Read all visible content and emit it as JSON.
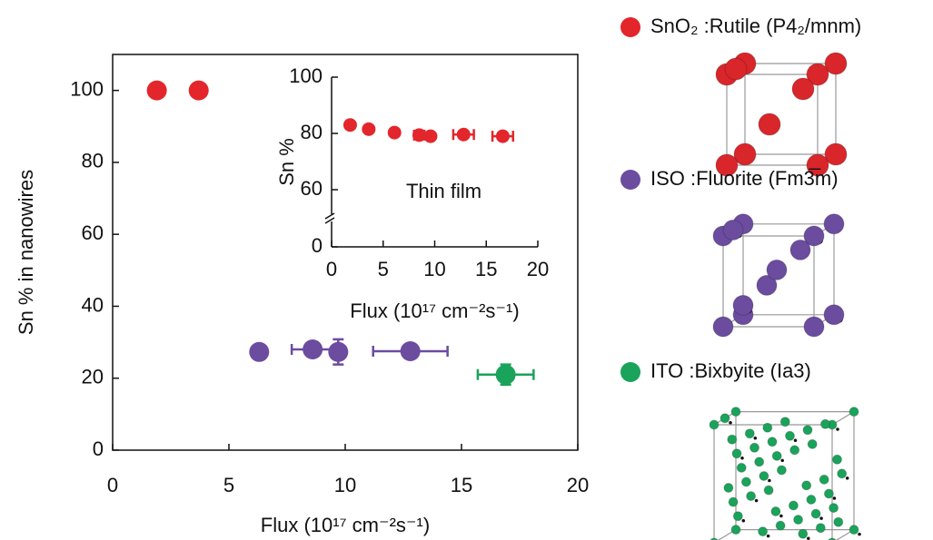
{
  "chart_data": [
    {
      "type": "scatter",
      "x_label": "Flux (10¹⁷ cm⁻²s⁻¹)",
      "y_label": "Sn % in nanowires",
      "xlim": [
        0,
        20
      ],
      "ylim": [
        0,
        110
      ],
      "xticks": [
        0,
        5,
        10,
        15,
        20
      ],
      "yticks": [
        0,
        20,
        40,
        60,
        80,
        100
      ],
      "series": [
        {
          "name": "SnO₂ :Rutile (P4₂/mnm)",
          "color": "#e3262b",
          "x": [
            1.9,
            3.7
          ],
          "values": [
            100,
            100
          ],
          "xerr": [
            null,
            null
          ],
          "yerr": [
            null,
            null
          ]
        },
        {
          "name": "ISO :Fluorite (Fm3̅m)",
          "color": "#6b4c9f",
          "x": [
            6.3,
            8.6,
            9.7,
            12.8
          ],
          "values": [
            27.3,
            28,
            27.3,
            27.5
          ],
          "xerr": [
            0.3,
            0.9,
            null,
            1.6
          ],
          "yerr": [
            null,
            null,
            3.5,
            1.8
          ]
        },
        {
          "name": "ITO :Bixbyite (Ia3)",
          "color": "#1aa35a",
          "x": [
            16.9
          ],
          "values": [
            21
          ],
          "xerr": [
            1.2
          ],
          "yerr": [
            2.8
          ]
        }
      ]
    },
    {
      "type": "scatter",
      "x_label": "Flux (10¹⁷ cm⁻²s⁻¹)",
      "y_label": "Sn %",
      "annotation": "Thin film",
      "xlim": [
        0,
        20
      ],
      "ylim": [
        0,
        100
      ],
      "axis_break": true,
      "xticks": [
        0,
        5,
        10,
        15,
        20
      ],
      "yticks": [
        0,
        60,
        80,
        100
      ],
      "series": [
        {
          "color": "#e3262b",
          "x": [
            1.8,
            3.6,
            6.1,
            8.5,
            9.6,
            12.8,
            16.6
          ],
          "values": [
            83,
            81.5,
            80.3,
            79.4,
            79,
            79.6,
            79
          ],
          "xerr": [
            null,
            null,
            null,
            0.5,
            null,
            1,
            1
          ]
        }
      ]
    }
  ]
}
